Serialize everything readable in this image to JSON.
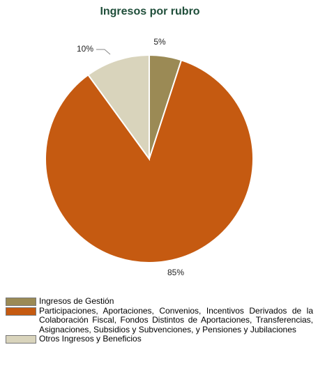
{
  "chart_data": {
    "type": "pie",
    "title": "Ingresos por rubro",
    "slices": [
      {
        "label": "Ingresos de Gestión",
        "value": 5,
        "display": "5%",
        "color": "#9B8A55"
      },
      {
        "label": "Participaciones, Aportaciones, Convenios, Incentivos Derivados de la Colaboración Fiscal, Fondos Distintos de Aportaciones, Transferencias, Asignaciones, Subsidios y Subvenciones, y Pensiones y Jubilaciones",
        "value": 85,
        "display": "85%",
        "color": "#C55A11"
      },
      {
        "label": "Otros Ingresos y Beneficios",
        "value": 10,
        "display": "10%",
        "color": "#D9D4BC"
      }
    ],
    "legend_position": "bottom"
  }
}
